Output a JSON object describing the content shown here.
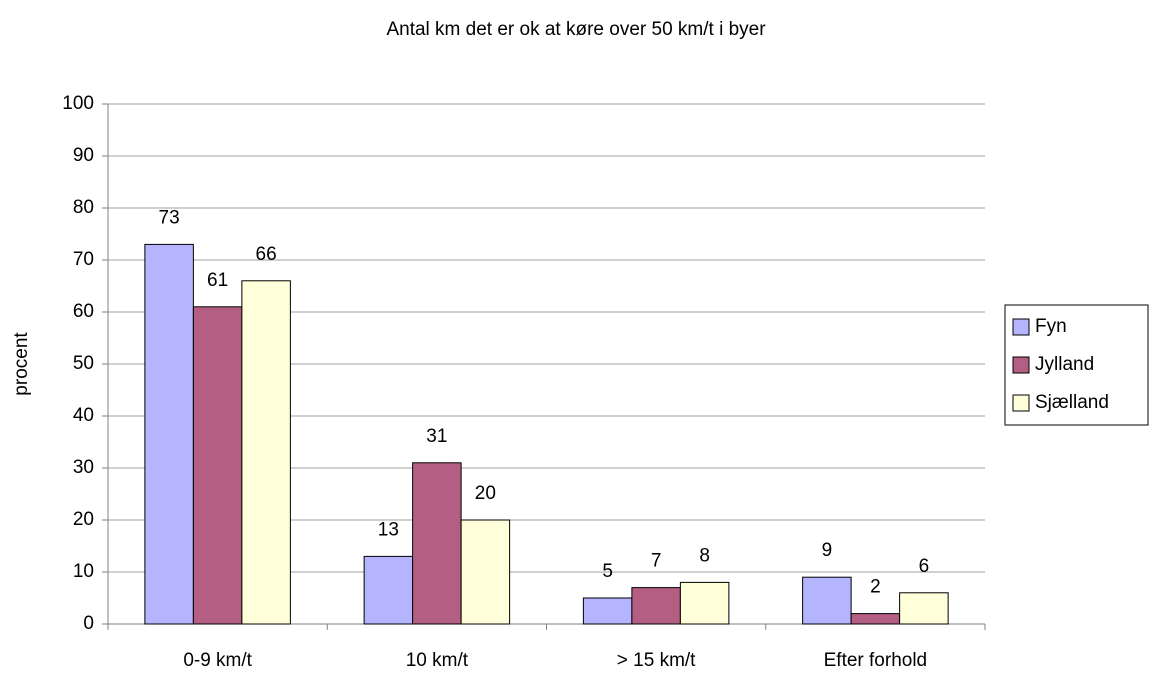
{
  "chart_data": {
    "type": "bar",
    "title": "Antal km det er ok at køre over 50 km/t i byer",
    "y_label": "procent",
    "categories": [
      "0-9 km/t",
      "10 km/t",
      "> 15 km/t",
      "Efter forhold"
    ],
    "series": [
      {
        "name": "Fyn",
        "color": "#b4b4ff",
        "values": [
          73,
          13,
          5,
          9
        ]
      },
      {
        "name": "Jylland",
        "color": "#b35e82",
        "values": [
          61,
          31,
          7,
          2
        ]
      },
      {
        "name": "Sjælland",
        "color": "#ffffda",
        "values": [
          66,
          20,
          8,
          6
        ]
      }
    ],
    "ylim": [
      0,
      100
    ],
    "yticks": [
      0,
      10,
      20,
      30,
      40,
      50,
      60,
      70,
      80,
      90,
      100
    ],
    "grid": true,
    "legend": "right"
  }
}
